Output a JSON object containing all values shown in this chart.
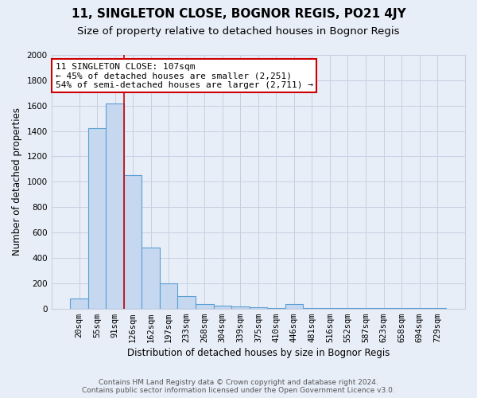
{
  "title": "11, SINGLETON CLOSE, BOGNOR REGIS, PO21 4JY",
  "subtitle": "Size of property relative to detached houses in Bognor Regis",
  "xlabel": "Distribution of detached houses by size in Bognor Regis",
  "ylabel": "Number of detached properties",
  "footer_line1": "Contains HM Land Registry data © Crown copyright and database right 2024.",
  "footer_line2": "Contains public sector information licensed under the Open Government Licence v3.0.",
  "annotation_line1": "11 SINGLETON CLOSE: 107sqm",
  "annotation_line2": "← 45% of detached houses are smaller (2,251)",
  "annotation_line3": "54% of semi-detached houses are larger (2,711) →",
  "bin_labels": [
    "20sqm",
    "55sqm",
    "91sqm",
    "126sqm",
    "162sqm",
    "197sqm",
    "233sqm",
    "268sqm",
    "304sqm",
    "339sqm",
    "375sqm",
    "410sqm",
    "446sqm",
    "481sqm",
    "516sqm",
    "552sqm",
    "587sqm",
    "623sqm",
    "658sqm",
    "694sqm",
    "729sqm"
  ],
  "bar_values": [
    80,
    1420,
    1620,
    1050,
    480,
    200,
    100,
    35,
    25,
    20,
    10,
    5,
    35,
    5,
    5,
    5,
    5,
    5,
    5,
    5,
    5
  ],
  "bar_color": "#c5d8ef",
  "bar_edge_color": "#5a9fd4",
  "grid_color": "#c8cfe0",
  "bg_color": "#e8eef8",
  "red_line_x": 2.5,
  "ylim": [
    0,
    2000
  ],
  "yticks": [
    0,
    200,
    400,
    600,
    800,
    1000,
    1200,
    1400,
    1600,
    1800,
    2000
  ],
  "annotation_box_color": "#ffffff",
  "annotation_box_edgecolor": "#cc0000",
  "title_fontsize": 11,
  "subtitle_fontsize": 9.5,
  "axis_label_fontsize": 8.5,
  "tick_fontsize": 7.5,
  "annotation_fontsize": 8,
  "footer_fontsize": 6.5
}
